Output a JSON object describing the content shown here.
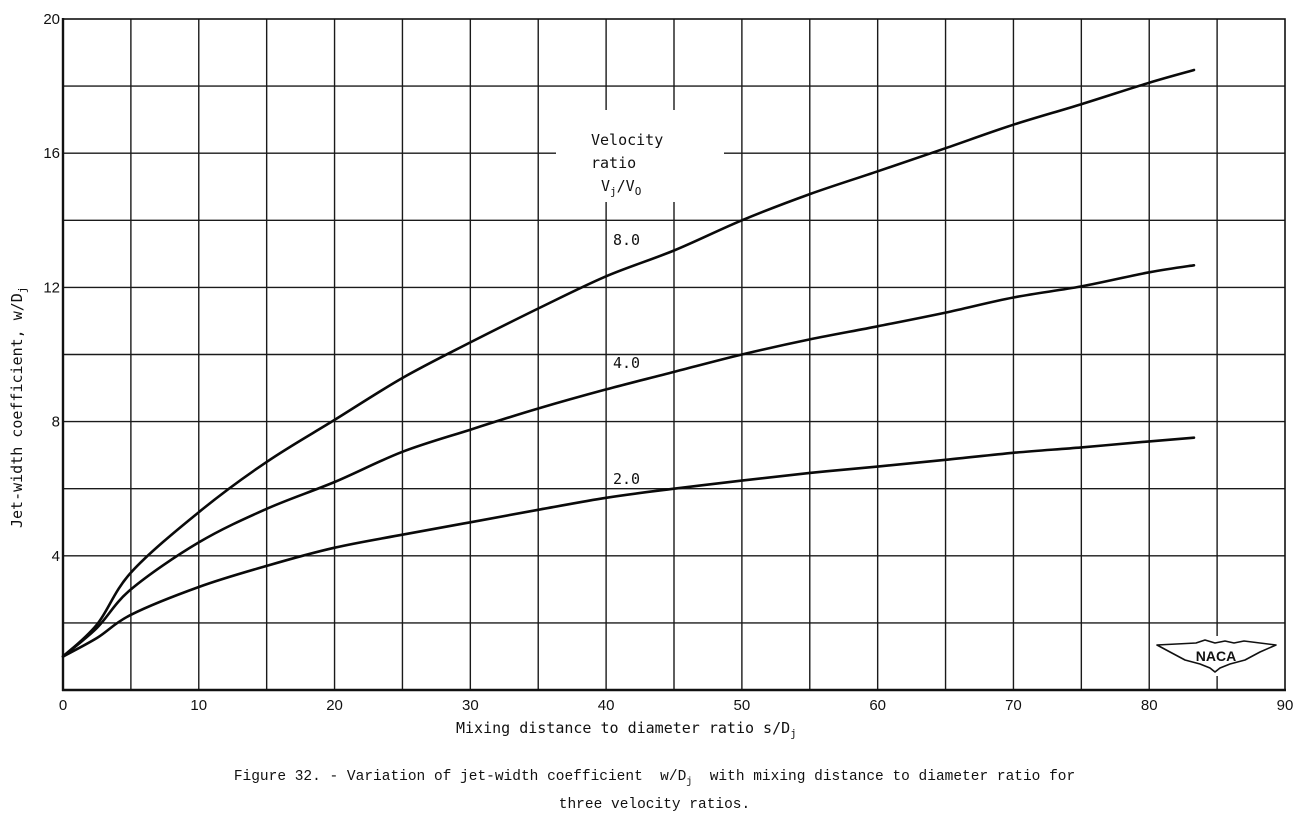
{
  "figure": {
    "caption_line1_prefix": "Figure 32. - Variation of jet-width coefficient  w/D",
    "caption_line1_sub": "j",
    "caption_line1_suffix": "  with mixing distance to diameter ratio for",
    "caption_line2": "three velocity ratios.",
    "logo_text": "NACA"
  },
  "axes": {
    "xlabel_main": "Mixing distance to diameter ratio  s/D",
    "xlabel_sub": "j",
    "ylabel_main": "Jet-width coefficient, w/D",
    "ylabel_sub": "j"
  },
  "legend": {
    "title_line1": "Velocity",
    "title_line2": "ratio",
    "title_line3_main": "V",
    "title_line3_sub1": "j",
    "title_line3_mid": "/V",
    "title_line3_sub2": "O"
  },
  "chart_data": {
    "type": "line",
    "title": "Figure 32. - Variation of jet-width coefficient w/Dj with mixing distance to diameter ratio for three velocity ratios.",
    "xlabel": "Mixing distance to diameter ratio s/Dj",
    "ylabel": "Jet-width coefficient, w/Dj",
    "xlim": [
      0,
      90
    ],
    "ylim": [
      0,
      20
    ],
    "xticks": [
      0,
      10,
      20,
      30,
      40,
      50,
      60,
      70,
      80,
      90
    ],
    "yticks": [
      4,
      8,
      12,
      16,
      20
    ],
    "ytick_labels_shown": [
      "4",
      "8",
      "12",
      "16",
      "20"
    ],
    "x_origin_label": "0",
    "grid": true,
    "grid_x_step": 5,
    "grid_y_step": 2,
    "legend_title": "Velocity ratio Vj/VO",
    "legend_position": "inline labels near curves (upper middle)",
    "x": [
      0,
      2.5,
      5,
      10,
      15,
      20,
      25,
      30,
      35,
      40,
      45,
      50,
      55,
      60,
      65,
      70,
      75,
      80,
      83.3
    ],
    "series": [
      {
        "name": "8.0",
        "values": [
          1.0,
          1.95,
          3.5,
          5.3,
          6.8,
          8.05,
          9.3,
          10.36,
          11.37,
          12.33,
          13.1,
          14.0,
          14.78,
          15.46,
          16.15,
          16.85,
          17.46,
          18.1,
          18.48
        ]
      },
      {
        "name": "4.0",
        "values": [
          1.0,
          1.85,
          3.0,
          4.4,
          5.4,
          6.2,
          7.1,
          7.76,
          8.39,
          8.96,
          9.48,
          10.0,
          10.45,
          10.84,
          11.25,
          11.7,
          12.03,
          12.45,
          12.66
        ]
      },
      {
        "name": "2.0",
        "values": [
          1.0,
          1.55,
          2.24,
          3.07,
          3.7,
          4.24,
          4.63,
          5.0,
          5.37,
          5.73,
          6.0,
          6.24,
          6.47,
          6.66,
          6.86,
          7.07,
          7.23,
          7.41,
          7.52
        ]
      }
    ],
    "annotations": [
      {
        "text": "8.0",
        "x": 40.5,
        "y": 13.5
      },
      {
        "text": "4.0",
        "x": 40.5,
        "y": 9.8
      },
      {
        "text": "2.0",
        "x": 40.5,
        "y": 6.3
      },
      {
        "text": "NACA",
        "position": "lower right logo"
      }
    ]
  }
}
